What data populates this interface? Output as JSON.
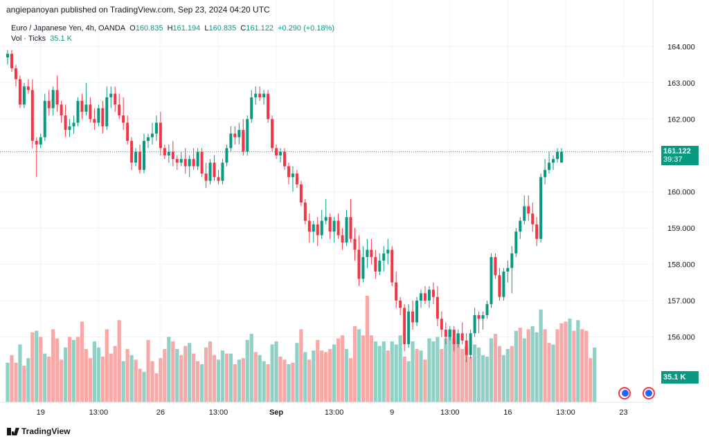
{
  "publisher_line": "angiepanoyan published on TradingView.com, Sep 23, 2024 04:20 UTC",
  "legend": {
    "symbol": "Euro / Japanese Yen, 4h, OANDA",
    "o_label": "O",
    "o": "160.835",
    "h_label": "H",
    "h": "161.194",
    "l_label": "L",
    "l": "160.835",
    "c_label": "C",
    "c": "161.122",
    "change": "+0.290 (+0.18%)",
    "vol_label": "Vol · Ticks",
    "vol_value": "35.1 K"
  },
  "last_price": {
    "value": "161.122",
    "countdown": "39:37"
  },
  "volume_label": "35.1 K",
  "footer": {
    "brand": "TradingView"
  },
  "colors": {
    "up": "#089981",
    "down": "#f23645",
    "vol_up": "#8fd0c7",
    "vol_down": "#f7a9a7",
    "grid": "#f0f3fa"
  },
  "chart_data": {
    "type": "candlestick",
    "title": "Euro / Japanese Yen, 4h, OANDA",
    "ylim": [
      154.2,
      164.9
    ],
    "y_ticks": [
      "164.000",
      "163.000",
      "162.000",
      "161.000",
      "160.000",
      "159.000",
      "158.000",
      "157.000",
      "156.000"
    ],
    "x_ticks": [
      {
        "label": "19",
        "index": 8
      },
      {
        "label": "13:00",
        "index": 22
      },
      {
        "label": "26",
        "index": 37
      },
      {
        "label": "13:00",
        "index": 51
      },
      {
        "label": "Sep",
        "index": 65
      },
      {
        "label": "13:00",
        "index": 79
      },
      {
        "label": "9",
        "index": 93
      },
      {
        "label": "13:00",
        "index": 107
      },
      {
        "label": "16",
        "index": 121
      },
      {
        "label": "13:00",
        "index": 135
      },
      {
        "label": "23",
        "index": 149
      }
    ],
    "candles": [
      [
        163.7,
        163.9,
        163.5,
        163.8
      ],
      [
        163.8,
        163.9,
        163.3,
        163.4
      ],
      [
        163.4,
        163.5,
        162.9,
        163.1
      ],
      [
        163.1,
        163.2,
        162.3,
        162.4
      ],
      [
        162.4,
        163.0,
        162.3,
        162.9
      ],
      [
        162.9,
        163.1,
        162.7,
        162.8
      ],
      [
        162.8,
        163.1,
        161.2,
        161.4
      ],
      [
        161.4,
        161.5,
        160.4,
        161.3
      ],
      [
        161.3,
        161.6,
        161.2,
        161.5
      ],
      [
        161.5,
        162.7,
        161.4,
        162.5
      ],
      [
        162.5,
        162.8,
        162.1,
        162.3
      ],
      [
        162.3,
        162.9,
        162.1,
        162.8
      ],
      [
        162.8,
        163.2,
        162.2,
        162.4
      ],
      [
        162.4,
        162.5,
        161.9,
        162.1
      ],
      [
        162.1,
        162.4,
        161.5,
        161.7
      ],
      [
        161.7,
        162.0,
        161.5,
        161.8
      ],
      [
        161.8,
        162.1,
        161.6,
        161.9
      ],
      [
        161.9,
        162.6,
        161.8,
        162.5
      ],
      [
        162.5,
        162.7,
        162.0,
        162.2
      ],
      [
        162.2,
        163.0,
        162.1,
        162.4
      ],
      [
        162.4,
        162.6,
        161.9,
        162.0
      ],
      [
        162.0,
        162.3,
        161.7,
        161.9
      ],
      [
        161.9,
        162.4,
        161.8,
        162.3
      ],
      [
        162.3,
        162.5,
        161.6,
        161.8
      ],
      [
        161.8,
        162.9,
        161.7,
        162.6
      ],
      [
        162.6,
        162.9,
        162.3,
        162.7
      ],
      [
        162.7,
        162.9,
        162.2,
        162.4
      ],
      [
        162.4,
        162.7,
        162.0,
        162.1
      ],
      [
        162.1,
        162.6,
        161.7,
        161.9
      ],
      [
        161.9,
        162.1,
        161.3,
        161.4
      ],
      [
        161.4,
        161.5,
        160.6,
        160.8
      ],
      [
        160.8,
        161.2,
        160.7,
        161.1
      ],
      [
        161.1,
        161.3,
        160.5,
        160.6
      ],
      [
        160.6,
        161.6,
        160.5,
        161.4
      ],
      [
        161.4,
        161.6,
        161.2,
        161.5
      ],
      [
        161.5,
        161.9,
        161.3,
        161.6
      ],
      [
        161.6,
        162.1,
        161.4,
        161.9
      ],
      [
        161.9,
        162.2,
        161.0,
        161.2
      ],
      [
        161.2,
        161.3,
        160.9,
        161.0
      ],
      [
        161.0,
        161.3,
        160.8,
        161.1
      ],
      [
        161.1,
        161.4,
        160.7,
        160.9
      ],
      [
        160.9,
        161.0,
        160.6,
        160.8
      ],
      [
        160.8,
        161.1,
        160.7,
        160.9
      ],
      [
        160.9,
        161.2,
        160.5,
        160.7
      ],
      [
        160.7,
        161.0,
        160.4,
        160.9
      ],
      [
        160.9,
        161.2,
        160.6,
        160.7
      ],
      [
        160.7,
        161.2,
        160.6,
        161.1
      ],
      [
        161.1,
        161.2,
        160.4,
        160.5
      ],
      [
        160.5,
        160.8,
        160.1,
        160.3
      ],
      [
        160.3,
        160.9,
        160.2,
        160.8
      ],
      [
        160.8,
        161.0,
        160.3,
        160.4
      ],
      [
        160.4,
        160.6,
        160.2,
        160.3
      ],
      [
        160.3,
        160.9,
        160.2,
        160.8
      ],
      [
        160.8,
        161.3,
        160.7,
        161.2
      ],
      [
        161.2,
        161.8,
        161.1,
        161.6
      ],
      [
        161.6,
        161.8,
        161.3,
        161.5
      ],
      [
        161.5,
        161.9,
        161.3,
        161.7
      ],
      [
        161.7,
        162.0,
        161.0,
        161.1
      ],
      [
        161.1,
        162.1,
        161.0,
        162.0
      ],
      [
        162.0,
        162.8,
        161.9,
        162.6
      ],
      [
        162.6,
        162.9,
        162.4,
        162.7
      ],
      [
        162.7,
        162.9,
        162.5,
        162.6
      ],
      [
        162.6,
        162.8,
        162.4,
        162.7
      ],
      [
        162.7,
        162.8,
        161.9,
        162.0
      ],
      [
        162.0,
        162.1,
        161.1,
        161.2
      ],
      [
        161.2,
        161.3,
        160.9,
        161.0
      ],
      [
        161.0,
        161.2,
        160.8,
        161.1
      ],
      [
        161.1,
        161.2,
        160.6,
        160.7
      ],
      [
        160.7,
        160.8,
        160.2,
        160.4
      ],
      [
        160.4,
        160.7,
        160.0,
        160.5
      ],
      [
        160.5,
        160.6,
        160.1,
        160.2
      ],
      [
        160.2,
        160.3,
        159.6,
        159.7
      ],
      [
        159.7,
        159.8,
        159.1,
        159.2
      ],
      [
        159.2,
        159.4,
        158.6,
        158.9
      ],
      [
        158.9,
        159.2,
        158.6,
        159.1
      ],
      [
        159.1,
        159.3,
        158.5,
        158.8
      ],
      [
        158.8,
        159.5,
        158.7,
        159.2
      ],
      [
        159.2,
        159.8,
        159.1,
        159.3
      ],
      [
        159.3,
        159.4,
        158.7,
        158.9
      ],
      [
        158.9,
        159.3,
        158.6,
        159.2
      ],
      [
        159.2,
        159.4,
        158.7,
        158.8
      ],
      [
        158.8,
        159.0,
        158.4,
        158.6
      ],
      [
        158.6,
        159.5,
        158.5,
        159.3
      ],
      [
        159.3,
        159.8,
        158.6,
        158.7
      ],
      [
        158.7,
        159.0,
        158.1,
        158.4
      ],
      [
        158.4,
        158.8,
        157.4,
        157.6
      ],
      [
        157.6,
        158.5,
        157.5,
        158.2
      ],
      [
        158.2,
        158.7,
        157.9,
        158.4
      ],
      [
        158.4,
        158.7,
        158.0,
        158.2
      ],
      [
        158.2,
        158.4,
        157.6,
        157.8
      ],
      [
        157.8,
        158.3,
        157.7,
        158.1
      ],
      [
        158.1,
        158.5,
        157.8,
        158.3
      ],
      [
        158.3,
        158.7,
        158.0,
        158.4
      ],
      [
        158.4,
        158.5,
        157.4,
        157.5
      ],
      [
        157.5,
        157.8,
        156.8,
        157.0
      ],
      [
        157.0,
        157.1,
        156.6,
        156.8
      ],
      [
        156.8,
        156.9,
        155.6,
        155.8
      ],
      [
        155.8,
        156.9,
        155.7,
        156.7
      ],
      [
        156.7,
        157.0,
        156.2,
        156.4
      ],
      [
        156.4,
        157.1,
        156.3,
        157.0
      ],
      [
        157.0,
        157.3,
        156.8,
        157.2
      ],
      [
        157.2,
        157.4,
        156.9,
        157.0
      ],
      [
        157.0,
        157.4,
        156.8,
        157.3
      ],
      [
        157.3,
        157.5,
        156.9,
        157.1
      ],
      [
        157.1,
        157.4,
        156.3,
        156.5
      ],
      [
        156.5,
        156.7,
        156.0,
        156.2
      ],
      [
        156.2,
        156.4,
        155.8,
        156.0
      ],
      [
        156.0,
        156.3,
        155.9,
        156.2
      ],
      [
        156.2,
        156.3,
        155.6,
        155.8
      ],
      [
        155.8,
        156.2,
        155.7,
        156.1
      ],
      [
        156.1,
        156.4,
        155.8,
        155.9
      ],
      [
        155.9,
        156.1,
        155.3,
        155.5
      ],
      [
        155.5,
        156.2,
        155.4,
        156.1
      ],
      [
        156.1,
        156.8,
        156.0,
        156.6
      ],
      [
        156.6,
        156.7,
        156.1,
        156.5
      ],
      [
        156.5,
        156.7,
        156.2,
        156.6
      ],
      [
        156.6,
        157.0,
        156.5,
        156.9
      ],
      [
        156.9,
        158.3,
        156.8,
        158.2
      ],
      [
        158.2,
        158.3,
        157.6,
        157.7
      ],
      [
        157.7,
        157.9,
        157.0,
        157.1
      ],
      [
        157.1,
        157.9,
        157.0,
        157.8
      ],
      [
        157.8,
        158.1,
        157.5,
        157.9
      ],
      [
        157.9,
        158.5,
        157.2,
        158.3
      ],
      [
        158.3,
        159.0,
        158.2,
        158.9
      ],
      [
        158.9,
        159.3,
        158.7,
        159.2
      ],
      [
        159.2,
        159.9,
        159.1,
        159.6
      ],
      [
        159.6,
        159.9,
        159.2,
        159.4
      ],
      [
        159.4,
        159.7,
        158.9,
        159.1
      ],
      [
        159.1,
        159.3,
        158.5,
        158.7
      ],
      [
        158.7,
        160.5,
        158.6,
        160.4
      ],
      [
        160.4,
        160.9,
        160.2,
        160.6
      ],
      [
        160.6,
        161.1,
        160.5,
        160.8
      ],
      [
        160.8,
        161.0,
        160.6,
        160.9
      ],
      [
        160.9,
        161.2,
        160.8,
        161.1
      ],
      [
        160.8,
        161.2,
        160.8,
        161.1
      ]
    ],
    "volume": [
      [
        0.26,
        1
      ],
      [
        0.31,
        0
      ],
      [
        0.26,
        0
      ],
      [
        0.38,
        1
      ],
      [
        0.24,
        0
      ],
      [
        0.29,
        1
      ],
      [
        0.46,
        0
      ],
      [
        0.47,
        1
      ],
      [
        0.43,
        0
      ],
      [
        0.32,
        1
      ],
      [
        0.3,
        0
      ],
      [
        0.48,
        0
      ],
      [
        0.42,
        0
      ],
      [
        0.28,
        0
      ],
      [
        0.36,
        1
      ],
      [
        0.43,
        0
      ],
      [
        0.41,
        1
      ],
      [
        0.43,
        0
      ],
      [
        0.53,
        0
      ],
      [
        0.35,
        0
      ],
      [
        0.29,
        0
      ],
      [
        0.4,
        1
      ],
      [
        0.36,
        1
      ],
      [
        0.3,
        0
      ],
      [
        0.48,
        0
      ],
      [
        0.32,
        0
      ],
      [
        0.37,
        0
      ],
      [
        0.54,
        0
      ],
      [
        0.27,
        1
      ],
      [
        0.35,
        0
      ],
      [
        0.31,
        1
      ],
      [
        0.28,
        0
      ],
      [
        0.22,
        0
      ],
      [
        0.2,
        1
      ],
      [
        0.41,
        0
      ],
      [
        0.27,
        0
      ],
      [
        0.19,
        0
      ],
      [
        0.29,
        0
      ],
      [
        0.35,
        0
      ],
      [
        0.43,
        1
      ],
      [
        0.4,
        0
      ],
      [
        0.35,
        1
      ],
      [
        0.31,
        0
      ],
      [
        0.37,
        0
      ],
      [
        0.39,
        1
      ],
      [
        0.32,
        0
      ],
      [
        0.27,
        0
      ],
      [
        0.25,
        1
      ],
      [
        0.36,
        0
      ],
      [
        0.4,
        0
      ],
      [
        0.31,
        0
      ],
      [
        0.28,
        1
      ],
      [
        0.34,
        1
      ],
      [
        0.32,
        0
      ],
      [
        0.32,
        1
      ],
      [
        0.25,
        0
      ],
      [
        0.28,
        1
      ],
      [
        0.29,
        0
      ],
      [
        0.41,
        1
      ],
      [
        0.45,
        1
      ],
      [
        0.33,
        0
      ],
      [
        0.31,
        1
      ],
      [
        0.27,
        1
      ],
      [
        0.25,
        0
      ],
      [
        0.38,
        1
      ],
      [
        0.4,
        1
      ],
      [
        0.3,
        0
      ],
      [
        0.28,
        0
      ],
      [
        0.25,
        1
      ],
      [
        0.26,
        0
      ],
      [
        0.39,
        1
      ],
      [
        0.48,
        0
      ],
      [
        0.33,
        1
      ],
      [
        0.28,
        0
      ],
      [
        0.34,
        1
      ],
      [
        0.41,
        0
      ],
      [
        0.34,
        0
      ],
      [
        0.33,
        0
      ],
      [
        0.35,
        0
      ],
      [
        0.38,
        1
      ],
      [
        0.42,
        0
      ],
      [
        0.44,
        0
      ],
      [
        0.35,
        1
      ],
      [
        0.29,
        0
      ],
      [
        0.5,
        0
      ],
      [
        0.48,
        1
      ],
      [
        0.44,
        0
      ],
      [
        0.7,
        0
      ],
      [
        0.44,
        0
      ],
      [
        0.4,
        1
      ],
      [
        0.37,
        1
      ],
      [
        0.4,
        1
      ],
      [
        0.34,
        0
      ],
      [
        0.4,
        1
      ],
      [
        0.38,
        1
      ],
      [
        0.44,
        1
      ],
      [
        0.3,
        0
      ],
      [
        0.27,
        1
      ],
      [
        0.4,
        1
      ],
      [
        0.35,
        0
      ],
      [
        0.34,
        1
      ],
      [
        0.28,
        0
      ],
      [
        0.42,
        1
      ],
      [
        0.4,
        1
      ],
      [
        0.43,
        1
      ],
      [
        0.35,
        0
      ],
      [
        0.42,
        1
      ],
      [
        0.48,
        1
      ],
      [
        0.42,
        0
      ],
      [
        0.45,
        0
      ],
      [
        0.35,
        0
      ],
      [
        0.37,
        0
      ],
      [
        0.3,
        0
      ],
      [
        0.38,
        1
      ],
      [
        0.36,
        1
      ],
      [
        0.31,
        1
      ],
      [
        0.3,
        1
      ],
      [
        0.42,
        1
      ],
      [
        0.45,
        0
      ],
      [
        0.37,
        0
      ],
      [
        0.31,
        1
      ],
      [
        0.35,
        1
      ],
      [
        0.37,
        0
      ],
      [
        0.47,
        1
      ],
      [
        0.49,
        0
      ],
      [
        0.42,
        1
      ],
      [
        0.48,
        0
      ],
      [
        0.5,
        1
      ],
      [
        0.46,
        1
      ],
      [
        0.61,
        1
      ],
      [
        0.48,
        0
      ],
      [
        0.39,
        0
      ],
      [
        0.38,
        1
      ],
      [
        0.48,
        0
      ],
      [
        0.52,
        0
      ],
      [
        0.53,
        0
      ],
      [
        0.55,
        1
      ],
      [
        0.47,
        0
      ],
      [
        0.54,
        1
      ],
      [
        0.48,
        0
      ],
      [
        0.47,
        0
      ],
      [
        0.29,
        0
      ],
      [
        0.36,
        1
      ]
    ]
  }
}
